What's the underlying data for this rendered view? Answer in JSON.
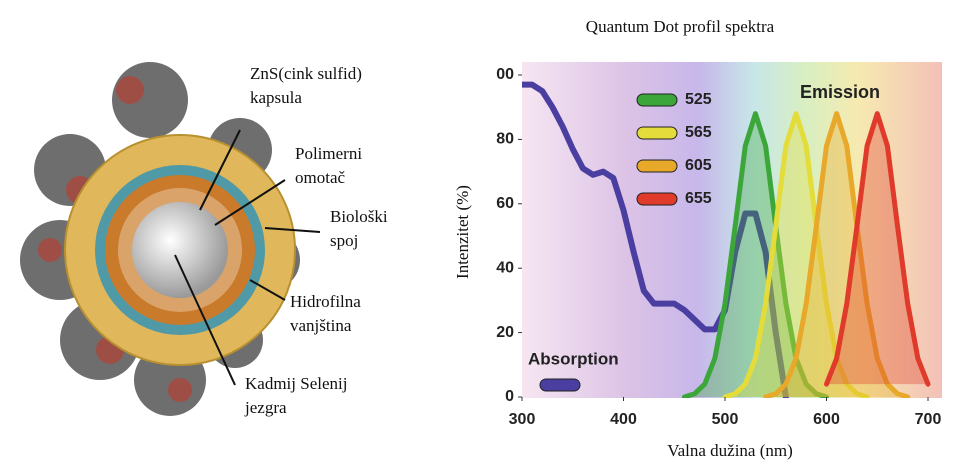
{
  "diagram": {
    "labels": [
      {
        "lines": [
          "ZnS(cink sulfid)",
          "kapsula"
        ]
      },
      {
        "lines": [
          "Polimerni",
          "omotač"
        ]
      },
      {
        "lines": [
          "Biološki",
          "spoj"
        ]
      },
      {
        "lines": [
          "Hidrofilna",
          "vanjština"
        ]
      },
      {
        "lines": [
          "Kadmij Selenij",
          "jezgra"
        ]
      }
    ]
  },
  "chart_data": {
    "type": "line",
    "title": "Quantum Dot profil spektra",
    "x_label": "Valna dužina (nm)",
    "y_label": "Intenzitet (%)",
    "annotations": [
      "Emission"
    ],
    "xlim": [
      300,
      700
    ],
    "xticks": [
      300,
      400,
      500,
      600,
      700
    ],
    "ylim": [
      0,
      100
    ],
    "yticks": [
      0,
      20,
      40,
      60,
      80,
      {
        "value": 100,
        "label": "00"
      }
    ],
    "series": [
      {
        "name": "Absorption",
        "color": "#4a3fa0",
        "x": [
          300,
          310,
          320,
          330,
          340,
          350,
          360,
          370,
          380,
          390,
          400,
          410,
          420,
          430,
          440,
          450,
          460,
          470,
          480,
          490,
          500,
          510,
          520,
          530,
          540,
          550,
          560
        ],
        "values": [
          97,
          97,
          95,
          90,
          84,
          77,
          71,
          69,
          70,
          68,
          58,
          45,
          33,
          29,
          29,
          29,
          27,
          24,
          21,
          21,
          27,
          45,
          57,
          57,
          45,
          20,
          0
        ]
      },
      {
        "name": "525",
        "color": "#3da63a",
        "x": [
          460,
          470,
          480,
          490,
          500,
          510,
          520,
          530,
          540,
          550,
          560,
          570,
          580,
          590,
          600
        ],
        "values": [
          0,
          1,
          4,
          12,
          29,
          53,
          78,
          88,
          78,
          53,
          29,
          12,
          4,
          1,
          0
        ]
      },
      {
        "name": "565",
        "color": "#e4dc3a",
        "x": [
          500,
          510,
          520,
          530,
          540,
          550,
          560,
          570,
          580,
          590,
          600,
          610,
          620,
          630,
          640
        ],
        "values": [
          0,
          1,
          4,
          12,
          29,
          53,
          78,
          88,
          78,
          53,
          29,
          12,
          4,
          1,
          0
        ]
      },
      {
        "name": "605",
        "color": "#e8a82a",
        "x": [
          540,
          550,
          560,
          570,
          580,
          590,
          600,
          610,
          620,
          630,
          640,
          650,
          660,
          670,
          680
        ],
        "values": [
          0,
          1,
          4,
          12,
          29,
          53,
          78,
          88,
          78,
          53,
          29,
          12,
          4,
          1,
          0
        ]
      },
      {
        "name": "655",
        "color": "#e03a2a",
        "x": [
          600,
          610,
          620,
          630,
          640,
          650,
          660,
          670,
          680,
          690,
          700
        ],
        "values": [
          4,
          12,
          29,
          53,
          78,
          88,
          78,
          53,
          29,
          12,
          4
        ]
      }
    ]
  }
}
